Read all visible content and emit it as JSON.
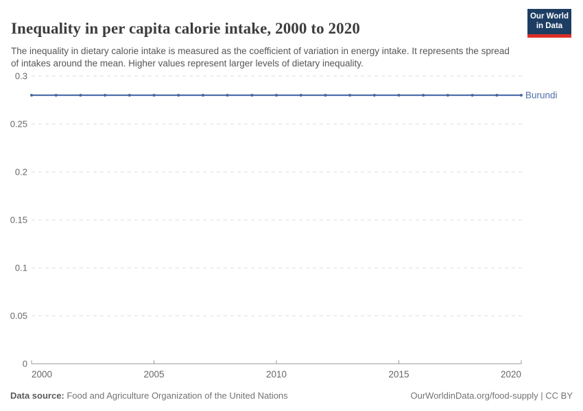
{
  "header": {
    "title": "Inequality in per capita calorie intake, 2000 to 2020",
    "subtitle": "The inequality in dietary calorie intake is measured as the coefficient of variation in energy intake. It represents the spread of intakes around the mean. Higher values represent larger levels of dietary inequality.",
    "logo": {
      "line1": "Our World",
      "line2": "in Data"
    }
  },
  "chart_data": {
    "type": "line",
    "title": "Inequality in per capita calorie intake, 2000 to 2020",
    "x": [
      2000,
      2001,
      2002,
      2003,
      2004,
      2005,
      2006,
      2007,
      2008,
      2009,
      2010,
      2011,
      2012,
      2013,
      2014,
      2015,
      2016,
      2017,
      2018,
      2019,
      2020
    ],
    "series": [
      {
        "name": "Burundi",
        "values": [
          0.28,
          0.28,
          0.28,
          0.28,
          0.28,
          0.28,
          0.28,
          0.28,
          0.28,
          0.28,
          0.28,
          0.28,
          0.28,
          0.28,
          0.28,
          0.28,
          0.28,
          0.28,
          0.28,
          0.28,
          0.28
        ]
      }
    ],
    "xlabel": "",
    "ylabel": "",
    "xlim": [
      2000,
      2020
    ],
    "ylim": [
      0,
      0.3
    ],
    "xticks": [
      2000,
      2005,
      2010,
      2015,
      2020
    ],
    "yticks": [
      0,
      0.05,
      0.1,
      0.15,
      0.2,
      0.25,
      0.3
    ],
    "ytick_labels": [
      "0",
      "0.05",
      "0.1",
      "0.15",
      "0.2",
      "0.25",
      "0.3"
    ],
    "grid": "horizontal-dashed",
    "legend_position": "end-of-line-label",
    "entity_label": "Burundi"
  },
  "footer": {
    "source_label": "Data source:",
    "source_text": " Food and Agriculture Organization of the United Nations",
    "credit": "OurWorldinData.org/food-supply | CC BY"
  },
  "colors": {
    "line": "#4d6ea7",
    "marker": "#46659f",
    "grid": "#dedede",
    "axis": "#999999",
    "tick_text": "#666666",
    "logo_bg": "#1d3d63",
    "logo_accent": "#dc2e27"
  }
}
